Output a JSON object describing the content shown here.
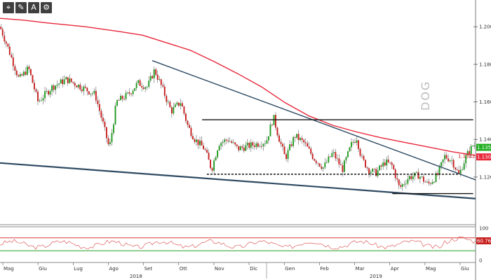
{
  "toolbar": {
    "buttons": [
      {
        "name": "crosshair-button",
        "icon": "crosshair-icon",
        "glyph": "⌖"
      },
      {
        "name": "draw-button",
        "icon": "pencil-icon",
        "glyph": "✎"
      },
      {
        "name": "text-button",
        "icon": "text-icon",
        "glyph": "A"
      },
      {
        "name": "settings-button",
        "icon": "gear-icon",
        "glyph": "⚙"
      }
    ]
  },
  "watermark": "DOG",
  "colors": {
    "up": "#1f9a1f",
    "down": "#c81e1e",
    "ma": "#e8263a",
    "trend": "#2e4a62",
    "oscLine": "#d84040",
    "oscUpper": "#d83a3a",
    "oscLower": "#2aa02a"
  },
  "chart_data": {
    "type": "candlestick",
    "title": "",
    "price_axis": {
      "ticks": [
        "1.1200",
        "1.1400",
        "1.1600",
        "1.1800",
        "1.2000"
      ],
      "range": [
        1.095,
        1.2135
      ]
    },
    "x_months": [
      "Mag",
      "Giu",
      "Lug",
      "Ago",
      "Set",
      "Ott",
      "Nov",
      "Dic",
      "Gen",
      "Feb",
      "Mar",
      "Apr",
      "Mag",
      "Giu"
    ],
    "x_years": [
      "2018",
      "2019"
    ],
    "last_price": "1.1358",
    "price_tag_small": "1.1312",
    "ma_tag": "1.1307",
    "ma_200": [
      {
        "t": 0,
        "v": 1.2045
      },
      {
        "t": 0.05,
        "v": 1.2035
      },
      {
        "t": 0.1,
        "v": 1.202
      },
      {
        "t": 0.18,
        "v": 1.2
      },
      {
        "t": 0.25,
        "v": 1.1975
      },
      {
        "t": 0.3,
        "v": 1.1955
      },
      {
        "t": 0.35,
        "v": 1.1915
      },
      {
        "t": 0.4,
        "v": 1.1875
      },
      {
        "t": 0.45,
        "v": 1.1815
      },
      {
        "t": 0.5,
        "v": 1.175
      },
      {
        "t": 0.55,
        "v": 1.168
      },
      {
        "t": 0.6,
        "v": 1.1595
      },
      {
        "t": 0.65,
        "v": 1.1525
      },
      {
        "t": 0.7,
        "v": 1.1475
      },
      {
        "t": 0.75,
        "v": 1.144
      },
      {
        "t": 0.8,
        "v": 1.141
      },
      {
        "t": 0.85,
        "v": 1.1385
      },
      {
        "t": 0.9,
        "v": 1.136
      },
      {
        "t": 0.95,
        "v": 1.1335
      },
      {
        "t": 1.0,
        "v": 1.1315
      }
    ],
    "trendlines": [
      {
        "name": "descending-trendline",
        "from": {
          "t": 0.32,
          "v": 1.182
        },
        "to": {
          "t": 1.0,
          "v": 1.1185
        },
        "dashed": false
      },
      {
        "name": "lower-channel-line",
        "from": {
          "t": 0,
          "v": 1.1275
        },
        "to": {
          "t": 1.0,
          "v": 1.1085
        },
        "dashed": false
      },
      {
        "name": "range-top-line",
        "from": {
          "t": 0.425,
          "v": 1.1505
        },
        "to": {
          "t": 0.995,
          "v": 1.1505
        },
        "dashed": false
      },
      {
        "name": "range-bottom-dashed",
        "from": {
          "t": 0.435,
          "v": 1.1215
        },
        "to": {
          "t": 0.965,
          "v": 1.1215
        },
        "dashed": true
      },
      {
        "name": "support-line",
        "from": {
          "t": 0.825,
          "v": 1.1112
        },
        "to": {
          "t": 0.995,
          "v": 1.1112
        },
        "dashed": false
      }
    ],
    "oscillator": {
      "ticks": [
        "0",
        "100"
      ],
      "upper": 70,
      "lower": 30,
      "value": "60.7617"
    }
  }
}
